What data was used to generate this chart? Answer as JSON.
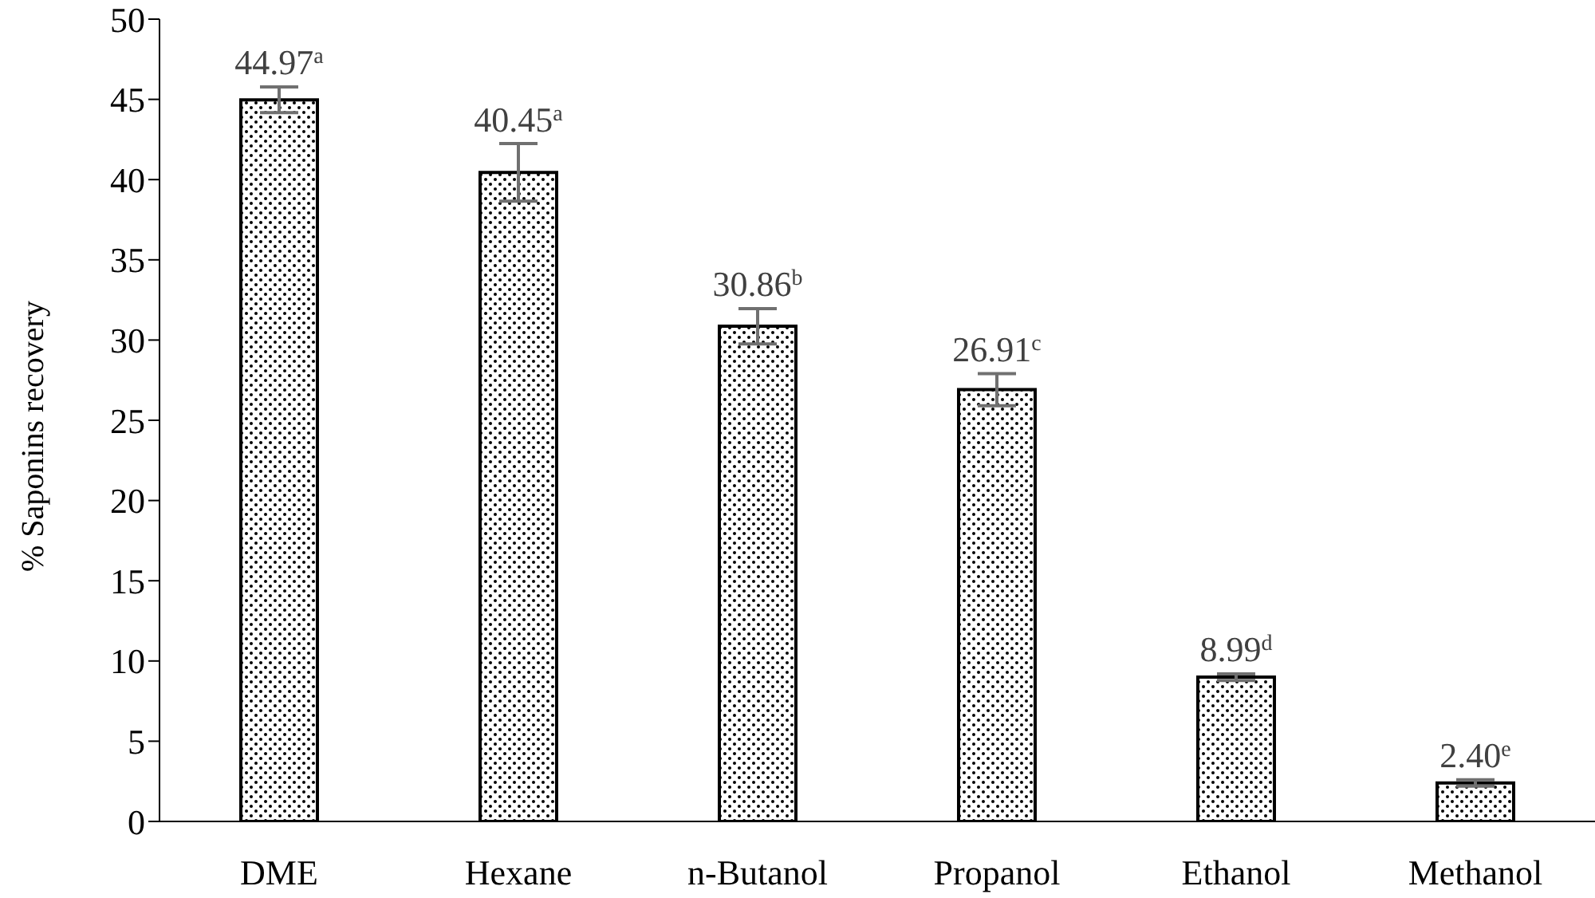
{
  "chart_data": {
    "type": "bar",
    "ylabel": "% Saponins recovery",
    "categories": [
      "DME",
      "Hexane",
      "n-Butanol",
      "Propanol",
      "Ethanol",
      "Methanol"
    ],
    "values": [
      44.97,
      40.45,
      30.86,
      26.91,
      8.99,
      2.4
    ],
    "errors": [
      0.8,
      1.8,
      1.1,
      1.0,
      0.2,
      0.2
    ],
    "value_labels": [
      "44.97$^{a}$",
      "40.45$^{a}$",
      "30.86$^{b}$",
      "26.91$^{c}$",
      "8.99$^{d}$",
      "2.40$^{e}$"
    ],
    "color": "#000000",
    "ylim": [
      0,
      50
    ],
    "yticks": [
      0,
      5,
      10,
      15,
      20,
      25,
      30,
      35,
      40,
      45,
      50
    ],
    "grid": false,
    "legend": false
  }
}
